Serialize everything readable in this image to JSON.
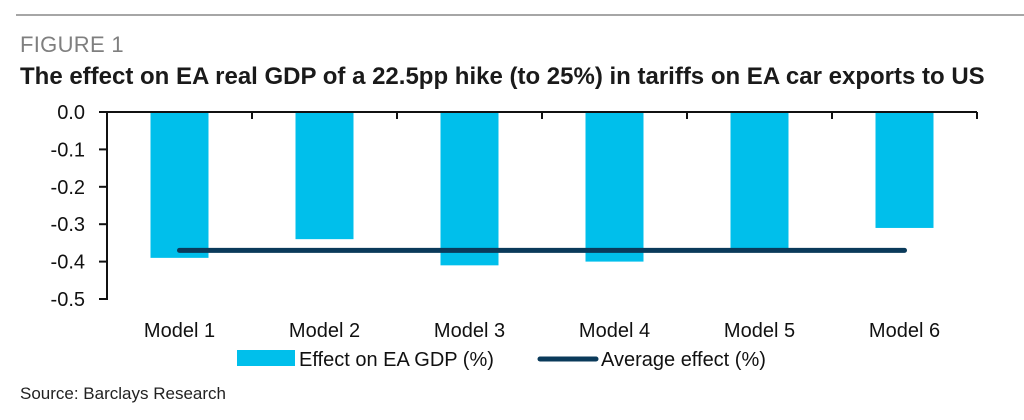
{
  "figure_label": "FIGURE 1",
  "source": "Source: Barclays Research",
  "colors": {
    "bar": "#00bfeb",
    "line": "#0a3a5a",
    "axis": "#111111"
  },
  "chart_data": {
    "type": "bar",
    "title": "The effect on EA real GDP of a 22.5pp hike (to 25%) in tariffs on EA car exports to US",
    "xlabel": "",
    "ylabel": "",
    "categories": [
      "Model 1",
      "Model 2",
      "Model 3",
      "Model 4",
      "Model 5",
      "Model 6"
    ],
    "ylim": [
      -0.5,
      0.0
    ],
    "yticks": [
      0.0,
      -0.1,
      -0.2,
      -0.3,
      -0.4,
      -0.5
    ],
    "ytick_labels": [
      "0.0",
      "-0.1",
      "-0.2",
      "-0.3",
      "-0.4",
      "-0.5"
    ],
    "grid": false,
    "legend_position": "bottom",
    "series": [
      {
        "name": "Effect on EA GDP (%)",
        "type": "bar",
        "values": [
          -0.39,
          -0.34,
          -0.41,
          -0.4,
          -0.37,
          -0.31
        ]
      },
      {
        "name": "Average effect (%)",
        "type": "line",
        "values": [
          -0.37,
          -0.37,
          -0.37,
          -0.37,
          -0.37,
          -0.37
        ]
      }
    ]
  }
}
